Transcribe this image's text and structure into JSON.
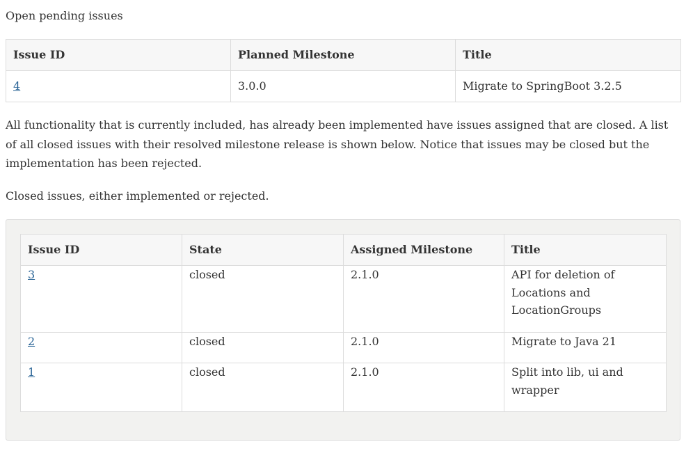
{
  "open_section": {
    "heading": "Open pending issues",
    "columns": [
      "Issue ID",
      "Planned Milestone",
      "Title"
    ],
    "rows": [
      {
        "id": "4",
        "milestone": "3.0.0",
        "title": "Migrate to SpringBoot 3.2.5"
      }
    ]
  },
  "intro_text": "All functionality that is currently included, has already been implemented have issues assigned that are closed. A list of all closed issues with their resolved milestone release is shown below. Notice that issues may be closed but the implementation has been rejected.",
  "closed_section": {
    "heading": "Closed issues, either implemented or rejected.",
    "columns": [
      "Issue ID",
      "State",
      "Assigned Milestone",
      "Title"
    ],
    "rows": [
      {
        "id": "3",
        "state": "closed",
        "milestone": "2.1.0",
        "title": "API for deletion of Locations and LocationGroups"
      },
      {
        "id": "2",
        "state": "closed",
        "milestone": "2.1.0",
        "title": "Migrate to Java 21"
      },
      {
        "id": "1",
        "state": "closed",
        "milestone": "2.1.0",
        "title": "Split into lib, ui and wrapper"
      }
    ]
  },
  "colors": {
    "link": "#2a6496",
    "text": "#333333",
    "header_bg": "#f7f7f7",
    "panel_bg": "#f2f2f0",
    "border": "#dcdcdc"
  }
}
